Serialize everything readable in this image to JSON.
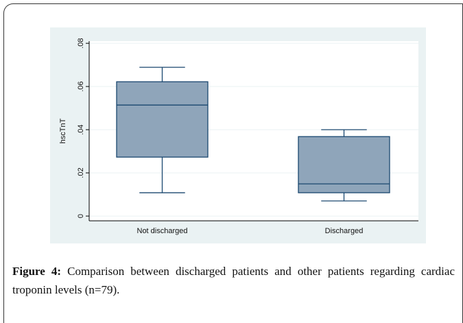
{
  "chart_data": {
    "type": "box",
    "y_label": "hscTnT",
    "categories": [
      "Not discharged",
      "Discharged"
    ],
    "stats": [
      {
        "whislo": 0.0108,
        "q1": 0.0273,
        "med": 0.0514,
        "q3": 0.0622,
        "whishi": 0.0689
      },
      {
        "whislo": 0.007,
        "q1": 0.0108,
        "med": 0.0149,
        "q3": 0.0368,
        "whishi": 0.04
      }
    ],
    "color": "#8fa5ba",
    "edge_color": "#1a476f",
    "ylim": [
      -0.0022,
      0.081
    ],
    "yticks": [
      0,
      {
        "value": 0.02,
        "label": ".02"
      },
      {
        "value": 0.04,
        "label": ".04"
      },
      {
        "value": 0.06,
        "label": ".06"
      },
      {
        "value": 0.08,
        "label": ".08"
      }
    ],
    "grid": true
  },
  "caption": {
    "label": "Figure 4:",
    "text": "Comparison between discharged patients and other patients regarding cardiac troponin levels (n=79)."
  }
}
